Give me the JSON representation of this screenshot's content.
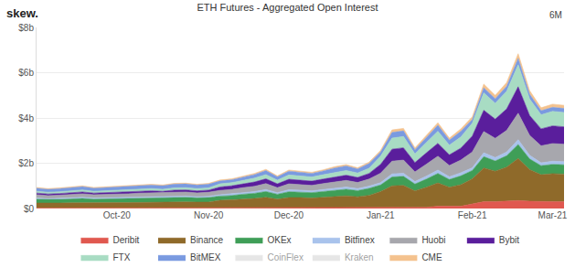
{
  "chart_data": {
    "type": "area",
    "title": "ETH Futures - Aggregated Open Interest",
    "annotations": [
      "skew.",
      "6M"
    ],
    "stacked": true,
    "grid": true,
    "legend": "bottom",
    "ylim": [
      0,
      8
    ],
    "yticks": [
      {
        "value": 0,
        "label": "$0"
      },
      {
        "value": 2,
        "label": "$2b"
      },
      {
        "value": 4,
        "label": "$4b"
      },
      {
        "value": 6,
        "label": "$6b"
      },
      {
        "value": 8,
        "label": "$8b"
      }
    ],
    "categories": [
      null,
      null,
      null,
      null,
      null,
      null,
      null,
      "Oct-20",
      null,
      null,
      null,
      null,
      null,
      null,
      null,
      "Nov-20",
      null,
      null,
      null,
      null,
      null,
      null,
      "Dec-20",
      null,
      null,
      null,
      null,
      null,
      null,
      null,
      "Jan-21",
      null,
      null,
      null,
      null,
      null,
      null,
      null,
      "Feb-21",
      null,
      null,
      null,
      null,
      null,
      null,
      "Mar-21",
      null
    ],
    "series": [
      {
        "name": "Deribit",
        "color": "#e0584f",
        "values": [
          0.02,
          0.02,
          0.02,
          0.02,
          0.02,
          0.02,
          0.02,
          0.02,
          0.02,
          0.02,
          0.02,
          0.02,
          0.02,
          0.02,
          0.02,
          0.02,
          0.02,
          0.02,
          0.02,
          0.02,
          0.02,
          0.02,
          0.02,
          0.03,
          0.03,
          0.03,
          0.03,
          0.03,
          0.03,
          0.03,
          0.05,
          0.05,
          0.05,
          0.05,
          0.05,
          0.1,
          0.1,
          0.1,
          0.2,
          0.3,
          0.3,
          0.32,
          0.35,
          0.32,
          0.3,
          0.3,
          0.3
        ]
      },
      {
        "name": "Binance",
        "color": "#8f6a2a",
        "values": [
          0.22,
          0.21,
          0.22,
          0.23,
          0.24,
          0.22,
          0.23,
          0.24,
          0.24,
          0.25,
          0.26,
          0.25,
          0.26,
          0.27,
          0.26,
          0.26,
          0.34,
          0.35,
          0.39,
          0.42,
          0.47,
          0.39,
          0.46,
          0.45,
          0.43,
          0.46,
          0.5,
          0.53,
          0.49,
          0.55,
          0.7,
          0.95,
          0.97,
          0.73,
          0.89,
          1.03,
          0.84,
          0.95,
          1.11,
          1.49,
          1.35,
          1.51,
          1.86,
          1.4,
          1.19,
          1.24,
          1.22
        ]
      },
      {
        "name": "OKEx",
        "color": "#3f9e57",
        "values": [
          0.17,
          0.16,
          0.16,
          0.17,
          0.18,
          0.17,
          0.17,
          0.18,
          0.18,
          0.19,
          0.19,
          0.19,
          0.2,
          0.2,
          0.19,
          0.2,
          0.19,
          0.2,
          0.22,
          0.23,
          0.26,
          0.22,
          0.26,
          0.25,
          0.24,
          0.26,
          0.28,
          0.29,
          0.27,
          0.31,
          0.29,
          0.39,
          0.4,
          0.3,
          0.36,
          0.42,
          0.34,
          0.39,
          0.37,
          0.5,
          0.45,
          0.5,
          0.62,
          0.47,
          0.4,
          0.41,
          0.41
        ]
      },
      {
        "name": "Bitfinex",
        "color": "#a9c3ec",
        "values": [
          0.05,
          0.04,
          0.05,
          0.05,
          0.05,
          0.05,
          0.05,
          0.05,
          0.05,
          0.05,
          0.05,
          0.05,
          0.06,
          0.06,
          0.05,
          0.06,
          0.06,
          0.07,
          0.07,
          0.08,
          0.09,
          0.07,
          0.09,
          0.08,
          0.08,
          0.09,
          0.09,
          0.1,
          0.09,
          0.1,
          0.1,
          0.14,
          0.14,
          0.11,
          0.13,
          0.15,
          0.12,
          0.14,
          0.12,
          0.17,
          0.15,
          0.17,
          0.21,
          0.16,
          0.13,
          0.14,
          0.14
        ]
      },
      {
        "name": "Huobi",
        "color": "#a7a7ad",
        "values": [
          0.15,
          0.14,
          0.14,
          0.15,
          0.16,
          0.15,
          0.15,
          0.16,
          0.16,
          0.17,
          0.17,
          0.17,
          0.18,
          0.18,
          0.17,
          0.18,
          0.19,
          0.2,
          0.22,
          0.23,
          0.26,
          0.22,
          0.26,
          0.25,
          0.24,
          0.26,
          0.28,
          0.29,
          0.27,
          0.31,
          0.42,
          0.56,
          0.58,
          0.43,
          0.53,
          0.61,
          0.5,
          0.56,
          0.7,
          0.94,
          0.85,
          0.95,
          1.17,
          0.88,
          0.75,
          0.78,
          0.77
        ]
      },
      {
        "name": "Bybit",
        "color": "#5a1e9c",
        "values": [
          0.07,
          0.07,
          0.07,
          0.08,
          0.08,
          0.07,
          0.08,
          0.08,
          0.08,
          0.08,
          0.09,
          0.08,
          0.09,
          0.09,
          0.09,
          0.09,
          0.15,
          0.16,
          0.17,
          0.19,
          0.21,
          0.17,
          0.2,
          0.2,
          0.19,
          0.2,
          0.22,
          0.23,
          0.22,
          0.25,
          0.39,
          0.53,
          0.54,
          0.41,
          0.5,
          0.57,
          0.47,
          0.53,
          0.7,
          0.94,
          0.85,
          0.95,
          1.17,
          0.88,
          0.75,
          0.78,
          0.77
        ]
      },
      {
        "name": "FTX",
        "color": "#a8dcc3",
        "values": [
          0.08,
          0.08,
          0.08,
          0.09,
          0.09,
          0.08,
          0.09,
          0.09,
          0.09,
          0.09,
          0.1,
          0.09,
          0.1,
          0.1,
          0.1,
          0.1,
          0.14,
          0.14,
          0.16,
          0.17,
          0.19,
          0.16,
          0.19,
          0.18,
          0.18,
          0.19,
          0.2,
          0.21,
          0.2,
          0.23,
          0.36,
          0.49,
          0.5,
          0.38,
          0.46,
          0.53,
          0.43,
          0.49,
          0.57,
          0.77,
          0.7,
          0.78,
          0.97,
          0.73,
          0.62,
          0.64,
          0.63
        ]
      },
      {
        "name": "BitMEX",
        "color": "#7a9ae0",
        "values": [
          0.14,
          0.13,
          0.14,
          0.14,
          0.15,
          0.14,
          0.14,
          0.15,
          0.15,
          0.16,
          0.16,
          0.16,
          0.17,
          0.17,
          0.16,
          0.17,
          0.13,
          0.13,
          0.15,
          0.16,
          0.18,
          0.15,
          0.17,
          0.17,
          0.16,
          0.17,
          0.19,
          0.2,
          0.18,
          0.21,
          0.18,
          0.25,
          0.25,
          0.19,
          0.23,
          0.27,
          0.22,
          0.25,
          0.16,
          0.22,
          0.2,
          0.22,
          0.28,
          0.21,
          0.18,
          0.18,
          0.18
        ]
      },
      {
        "name": "CoinFlex",
        "color": "#cfcfcf",
        "values": [
          null,
          null,
          null,
          null,
          null,
          null,
          null,
          null,
          null,
          null,
          null,
          null,
          null,
          null,
          null,
          null,
          null,
          null,
          null,
          null,
          null,
          null,
          null,
          null,
          null,
          null,
          null,
          null,
          null,
          null,
          null,
          null,
          null,
          null,
          null,
          null,
          null,
          null,
          null,
          null,
          null,
          null,
          null,
          null,
          null,
          null,
          null
        ]
      },
      {
        "name": "Kraken",
        "color": "#cfcfcf",
        "values": [
          null,
          null,
          null,
          null,
          null,
          null,
          null,
          null,
          null,
          null,
          null,
          null,
          null,
          null,
          null,
          null,
          null,
          null,
          null,
          null,
          null,
          null,
          null,
          null,
          null,
          null,
          null,
          null,
          null,
          null,
          null,
          null,
          null,
          null,
          null,
          null,
          null,
          null,
          null,
          null,
          null,
          null,
          null,
          null,
          null,
          null,
          null
        ]
      },
      {
        "name": "CME",
        "color": "#f4c28e",
        "values": [
          0.03,
          0.03,
          0.03,
          0.03,
          0.03,
          0.03,
          0.03,
          0.03,
          0.03,
          0.03,
          0.03,
          0.03,
          0.03,
          0.03,
          0.03,
          0.03,
          0.04,
          0.04,
          0.04,
          0.05,
          0.05,
          0.04,
          0.05,
          0.05,
          0.05,
          0.05,
          0.06,
          0.06,
          0.05,
          0.06,
          0.08,
          0.11,
          0.11,
          0.08,
          0.1,
          0.11,
          0.09,
          0.11,
          0.12,
          0.17,
          0.15,
          0.17,
          0.21,
          0.16,
          0.13,
          0.14,
          0.14
        ]
      }
    ]
  }
}
